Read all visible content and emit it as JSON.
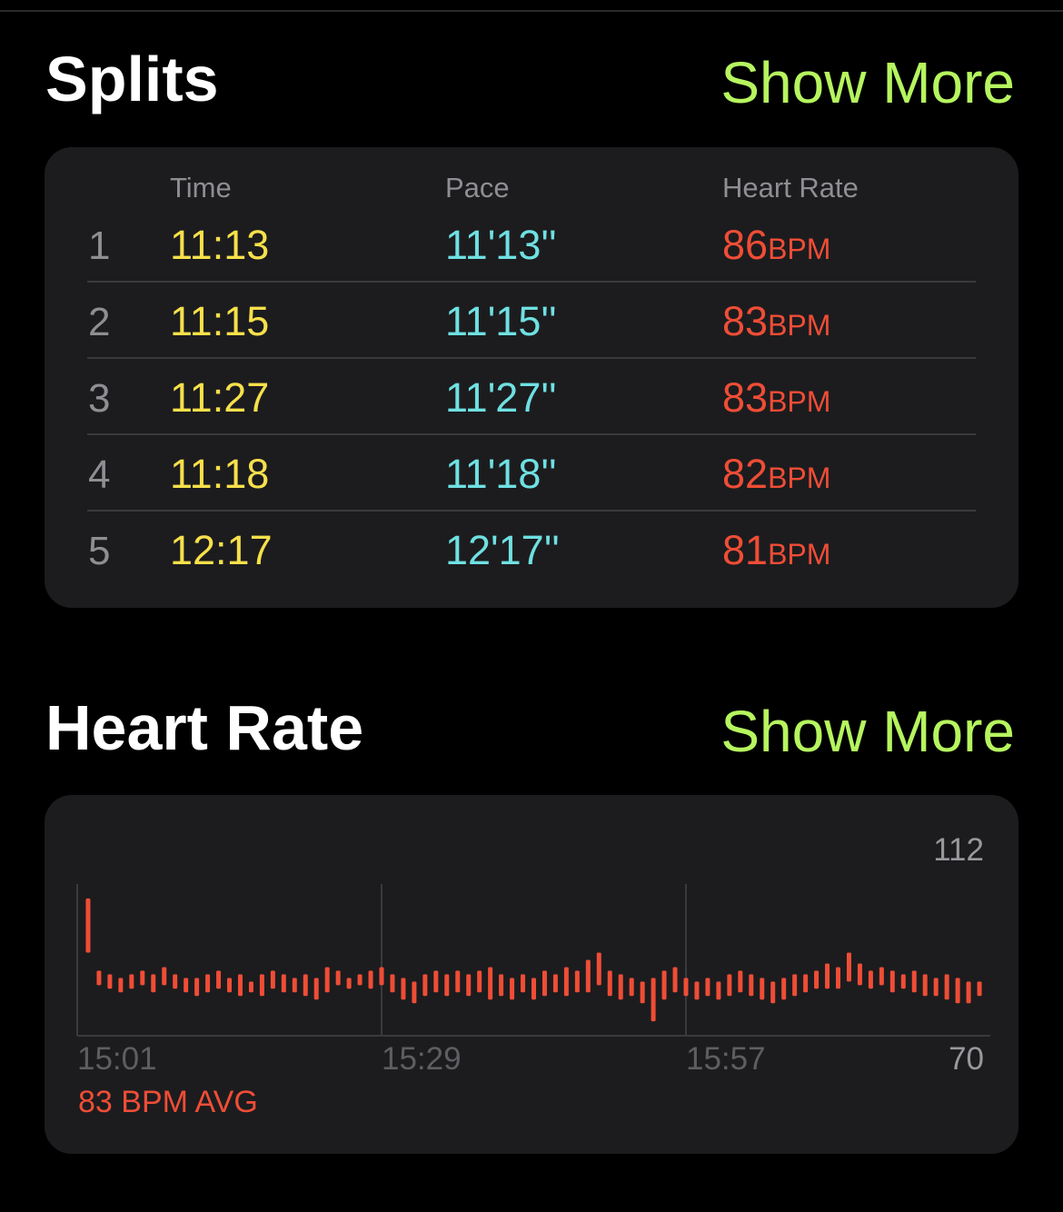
{
  "splits": {
    "title": "Splits",
    "show_more": "Show More",
    "headers": [
      "Time",
      "Pace",
      "Heart Rate"
    ],
    "rows": [
      {
        "split": "1",
        "time": "11:13",
        "pace": "11'13''",
        "heart_rate": "86",
        "unit": "BPM"
      },
      {
        "split": "2",
        "time": "11:15",
        "pace": "11'15''",
        "heart_rate": "83",
        "unit": "BPM"
      },
      {
        "split": "3",
        "time": "11:27",
        "pace": "11'27''",
        "heart_rate": "83",
        "unit": "BPM"
      },
      {
        "split": "4",
        "time": "11:18",
        "pace": "11'18''",
        "heart_rate": "82",
        "unit": "BPM"
      },
      {
        "split": "5",
        "time": "12:17",
        "pace": "12'17''",
        "heart_rate": "81",
        "unit": "BPM"
      }
    ]
  },
  "heart_rate": {
    "title": "Heart Rate",
    "show_more": "Show More",
    "avg_label": "83 BPM AVG"
  },
  "chart_data": {
    "type": "range_bar",
    "color": "#ef4d36",
    "x": [
      902,
      903,
      904,
      905,
      906,
      907,
      908,
      909,
      910,
      911,
      912,
      913,
      914,
      915,
      916,
      917,
      918,
      919,
      920,
      921,
      922,
      923,
      924,
      925,
      926,
      927,
      928,
      929,
      930,
      931,
      932,
      933,
      934,
      935,
      936,
      937,
      938,
      939,
      940,
      941,
      942,
      943,
      944,
      945,
      946,
      947,
      948,
      949,
      950,
      951,
      952,
      953,
      954,
      955,
      956,
      957,
      958,
      959,
      960,
      961,
      962,
      963,
      964,
      965,
      966,
      967,
      968,
      969,
      970,
      971,
      972,
      973,
      974,
      975,
      976,
      977,
      978,
      979,
      980,
      981,
      982,
      983,
      984
    ],
    "high": [
      108,
      88,
      87,
      86,
      87,
      88,
      87,
      89,
      87,
      86,
      86,
      87,
      88,
      86,
      87,
      85,
      87,
      88,
      87,
      86,
      87,
      86,
      89,
      88,
      86,
      87,
      88,
      89,
      87,
      86,
      85,
      87,
      88,
      87,
      88,
      87,
      88,
      89,
      87,
      86,
      87,
      86,
      88,
      87,
      89,
      88,
      91,
      93,
      88,
      87,
      86,
      85,
      86,
      88,
      89,
      86,
      85,
      86,
      85,
      87,
      88,
      87,
      86,
      85,
      86,
      87,
      87,
      88,
      90,
      89,
      93,
      90,
      88,
      89,
      88,
      87,
      88,
      87,
      86,
      87,
      86,
      85,
      85
    ],
    "low": [
      93,
      84,
      83,
      82,
      83,
      84,
      82,
      84,
      83,
      82,
      81,
      82,
      83,
      82,
      81,
      82,
      81,
      83,
      82,
      82,
      81,
      80,
      82,
      84,
      83,
      84,
      83,
      84,
      82,
      80,
      79,
      81,
      82,
      81,
      82,
      81,
      82,
      80,
      81,
      80,
      82,
      80,
      81,
      82,
      81,
      82,
      82,
      84,
      81,
      80,
      81,
      79,
      74,
      80,
      82,
      81,
      80,
      81,
      80,
      81,
      82,
      81,
      80,
      79,
      80,
      81,
      82,
      83,
      83,
      83,
      85,
      84,
      83,
      84,
      82,
      83,
      82,
      81,
      81,
      80,
      79,
      79,
      81
    ],
    "xlim": [
      901,
      985
    ],
    "xticks": [
      {
        "value": 901,
        "label": "15:01"
      },
      {
        "value": 929,
        "label": "15:29"
      },
      {
        "value": 957,
        "label": "15:57"
      }
    ],
    "ylim": [
      70,
      112
    ],
    "yticks": [
      70,
      112
    ],
    "grid": true
  }
}
